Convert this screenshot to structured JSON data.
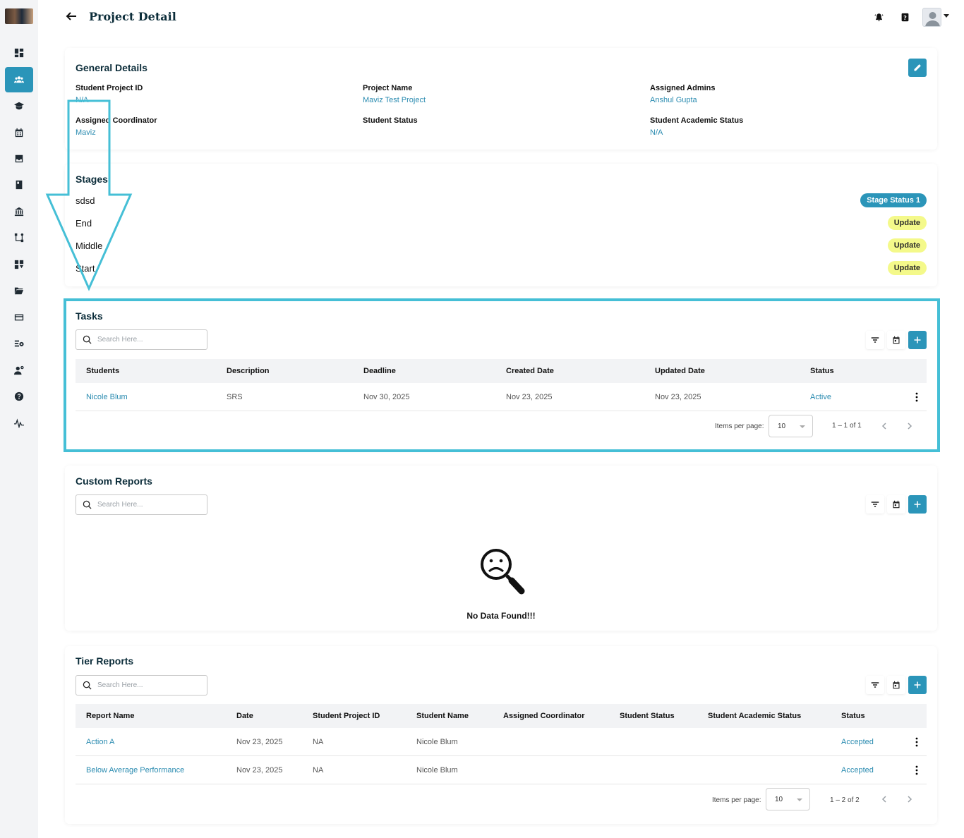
{
  "header": {
    "title": "Project Detail"
  },
  "general": {
    "title": "General Details",
    "fields": [
      {
        "label": "Student Project ID",
        "value": "N/A"
      },
      {
        "label": "Project Name",
        "value": "Maviz Test Project"
      },
      {
        "label": "Assigned Admins",
        "value": "Anshul Gupta"
      },
      {
        "label": "Assigned Coordinator",
        "value": "Maviz"
      },
      {
        "label": "Student Status",
        "value": ""
      },
      {
        "label": "Student Academic Status",
        "value": "N/A"
      }
    ]
  },
  "stages": {
    "title": "Stages",
    "items": [
      {
        "name": "sdsd",
        "status": "Stage Status 1"
      },
      {
        "name": "End",
        "status": "Update"
      },
      {
        "name": "Middle",
        "status": "Update"
      },
      {
        "name": "Start",
        "status": "Update"
      }
    ]
  },
  "tasks": {
    "title": "Tasks",
    "search_placeholder": "Search Here...",
    "columns": [
      "Students",
      "Description",
      "Deadline",
      "Created Date",
      "Updated Date",
      "Status"
    ],
    "rows": [
      {
        "student": "Nicole Blum",
        "description": "SRS",
        "deadline": "Nov 30, 2025",
        "created": "Nov 23, 2025",
        "updated": "Nov 23, 2025",
        "status": "Active"
      }
    ],
    "items_per_page_label": "Items per page:",
    "items_per_page": "10",
    "range": "1 – 1 of 1"
  },
  "custom_reports": {
    "title": "Custom Reports",
    "search_placeholder": "Search Here...",
    "empty_text": "No Data Found!!!"
  },
  "tier_reports": {
    "title": "Tier Reports",
    "search_placeholder": "Search Here...",
    "columns": [
      "Report Name",
      "Date",
      "Student Project ID",
      "Student Name",
      "Assigned Coordinator",
      "Student Status",
      "Student Academic Status",
      "Status"
    ],
    "rows": [
      {
        "name": "Action A",
        "date": "Nov 23, 2025",
        "project_id": "NA",
        "student": "Nicole Blum",
        "coordinator": "",
        "student_status": "",
        "academic_status": "",
        "status": "Accepted"
      },
      {
        "name": "Below Average Performance",
        "date": "Nov 23, 2025",
        "project_id": "NA",
        "student": "Nicole Blum",
        "coordinator": "",
        "student_status": "",
        "academic_status": "",
        "status": "Accepted"
      }
    ],
    "items_per_page_label": "Items per page:",
    "items_per_page": "10",
    "range": "1 – 2 of 2"
  },
  "colors": {
    "accent": "#2b95b9",
    "highlight": "#45bfd6",
    "badge_yellow": "#f4f98a",
    "title_dark": "#0c2d3a"
  },
  "icons": {
    "sidebar": [
      "dashboard-icon",
      "users-icon",
      "graduation-cap-icon",
      "calendar-icon",
      "inbox-icon",
      "book-icon",
      "institution-icon",
      "workflow-icon",
      "grid-download-icon",
      "folder-open-icon",
      "credit-card-icon",
      "list-settings-icon",
      "user-settings-icon",
      "help-icon",
      "activity-icon"
    ]
  }
}
